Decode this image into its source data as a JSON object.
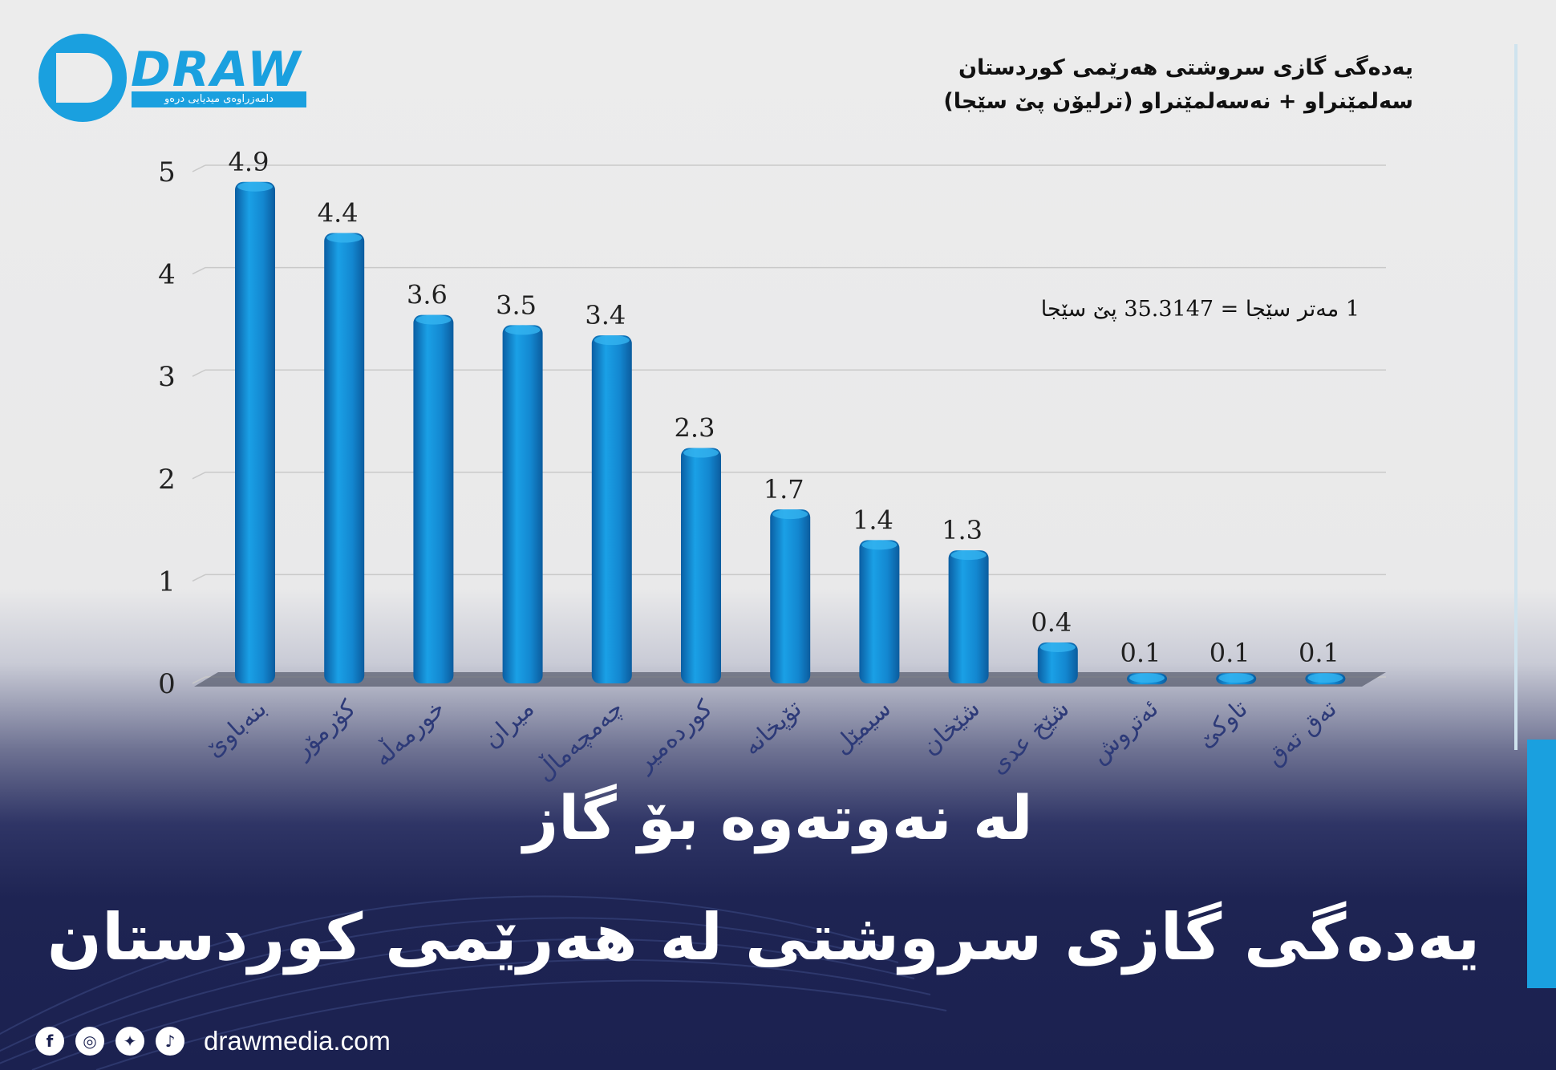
{
  "brand": {
    "logo_text": "DRAW",
    "logo_tagline": "دامەزراوەی میدیایی درەو",
    "site": "drawmedia.com",
    "accent": "#1aa0df",
    "social_icons": [
      "facebook-icon",
      "instagram-icon",
      "twitter-icon",
      "tiktok-icon"
    ]
  },
  "headline": {
    "line1": "لە نەوتەوە بۆ گاز",
    "line2": "یەدەگی گازی سروشتی لە هەرێمی کوردستان"
  },
  "chart_data": {
    "type": "bar",
    "title": "یەدەگی گازی سروشتی هەرێمی کوردستان",
    "subtitle": "سەلمێنراو + نەسەلمێنراو (ترلیۆن پێ سێجا)",
    "note": "1 مەتر سێجا = 35.3147 پێ سێجا",
    "categories": [
      "بنەباوێ",
      "کۆرمۆر",
      "خورمەڵە",
      "میران",
      "چەمچەماڵ",
      "کوردەمیر",
      "تۆپخانە",
      "سیمێل",
      "شێخان",
      "شێخ عدی",
      "ئەتروش",
      "تاوکێ",
      "تەق تەق"
    ],
    "values": [
      4.9,
      4.4,
      3.6,
      3.5,
      3.4,
      2.3,
      1.7,
      1.4,
      1.3,
      0.4,
      0.1,
      0.1,
      0.1
    ],
    "value_labels": [
      "4.9",
      "4.4",
      "3.6",
      "3.5",
      "3.4",
      "2.3",
      "1.7",
      "1.4",
      "1.3",
      "0.4",
      "0.1",
      "0.1",
      "0.1"
    ],
    "y_ticks": [
      "0",
      "1",
      "2",
      "3",
      "4",
      "5"
    ],
    "ylim": [
      0,
      5
    ],
    "grid": true,
    "bar_color": "#1580c8"
  }
}
